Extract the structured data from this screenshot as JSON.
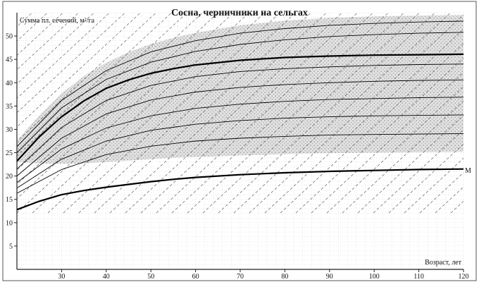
{
  "chart_data": {
    "type": "line",
    "title": "Сосна, черничники на сельгах",
    "ylabel": "Сумма пл. сечений, м²/га",
    "xlabel": "Возраст, лет",
    "xlim": [
      20,
      120
    ],
    "ylim": [
      0,
      55
    ],
    "x_ticks": [
      30,
      40,
      50,
      60,
      70,
      80,
      90,
      100,
      110,
      120
    ],
    "y_ticks": [
      5,
      10,
      15,
      20,
      25,
      30,
      35,
      40,
      45,
      50
    ],
    "grid": true,
    "annotations": [
      {
        "text": "M",
        "x": 120,
        "y": 21.5
      }
    ],
    "shaded_region": {
      "x": [
        20,
        25,
        30,
        35,
        40,
        45,
        50,
        55,
        60,
        70,
        80,
        90,
        100,
        110,
        120
      ],
      "upper": [
        27.5,
        33,
        37.7,
        41.4,
        44.3,
        46.5,
        48.3,
        49.6,
        50.7,
        52.3,
        53.3,
        53.9,
        54.2,
        54.4,
        54.5
      ],
      "lower": [
        23.0,
        22.7,
        22.6,
        22.7,
        23.0,
        23.3,
        23.6,
        23.9,
        24.1,
        24.4,
        24.7,
        24.9,
        25.0,
        25.1,
        25.2
      ]
    },
    "series": [
      {
        "style": "bold",
        "x": [
          20,
          25,
          30,
          35,
          40,
          45,
          50,
          55,
          60,
          70,
          80,
          90,
          100,
          110,
          120
        ],
        "values": [
          23.2,
          28.4,
          32.7,
          36.1,
          38.8,
          40.6,
          42.0,
          43.0,
          43.8,
          44.8,
          45.4,
          45.7,
          45.9,
          46.0,
          46.1
        ]
      },
      {
        "style": "bold",
        "x": [
          20,
          25,
          30,
          35,
          40,
          45,
          50,
          55,
          60,
          70,
          80,
          90,
          100,
          110,
          120
        ],
        "values": [
          12.8,
          14.6,
          16.0,
          16.9,
          17.6,
          18.2,
          18.8,
          19.3,
          19.7,
          20.3,
          20.7,
          21.0,
          21.2,
          21.4,
          21.5
        ]
      },
      {
        "style": "thin",
        "x": [
          20,
          30,
          40,
          50,
          60,
          70,
          80,
          90,
          100,
          110,
          120
        ],
        "values": [
          26.3,
          36.2,
          42.6,
          46.6,
          49.0,
          50.6,
          51.6,
          52.3,
          52.7,
          53.0,
          53.2
        ]
      },
      {
        "style": "thin",
        "x": [
          20,
          30,
          40,
          50,
          60,
          70,
          80,
          90,
          100,
          110,
          120
        ],
        "values": [
          25.0,
          34.6,
          40.7,
          44.4,
          46.7,
          48.2,
          49.2,
          49.9,
          50.3,
          50.6,
          50.8
        ]
      },
      {
        "style": "thin",
        "x": [
          20,
          30,
          40,
          50,
          60,
          70,
          80,
          90,
          100,
          110,
          120
        ],
        "values": [
          21.5,
          30.4,
          36.2,
          39.4,
          41.3,
          42.4,
          43.0,
          43.4,
          43.7,
          43.9,
          44.0
        ]
      },
      {
        "style": "thin",
        "x": [
          20,
          30,
          40,
          50,
          60,
          70,
          80,
          90,
          100,
          110,
          120
        ],
        "values": [
          20.0,
          28.1,
          33.3,
          36.3,
          38.0,
          39.0,
          39.6,
          40.0,
          40.3,
          40.5,
          40.6
        ]
      },
      {
        "style": "thin",
        "x": [
          20,
          30,
          40,
          50,
          60,
          70,
          80,
          90,
          100,
          110,
          120
        ],
        "values": [
          18.6,
          25.8,
          30.3,
          32.9,
          34.5,
          35.4,
          36.0,
          36.4,
          36.6,
          36.8,
          36.9
        ]
      },
      {
        "style": "thin",
        "x": [
          20,
          30,
          40,
          50,
          60,
          70,
          80,
          90,
          100,
          110,
          120
        ],
        "values": [
          17.4,
          23.6,
          27.5,
          29.8,
          31.1,
          31.9,
          32.4,
          32.7,
          32.9,
          33.0,
          33.1
        ]
      },
      {
        "style": "thin",
        "x": [
          20,
          30,
          40,
          50,
          60,
          70,
          80,
          90,
          100,
          110,
          120
        ],
        "values": [
          16.3,
          21.4,
          24.6,
          26.4,
          27.5,
          28.1,
          28.5,
          28.8,
          28.9,
          29.0,
          29.1
        ]
      }
    ]
  }
}
